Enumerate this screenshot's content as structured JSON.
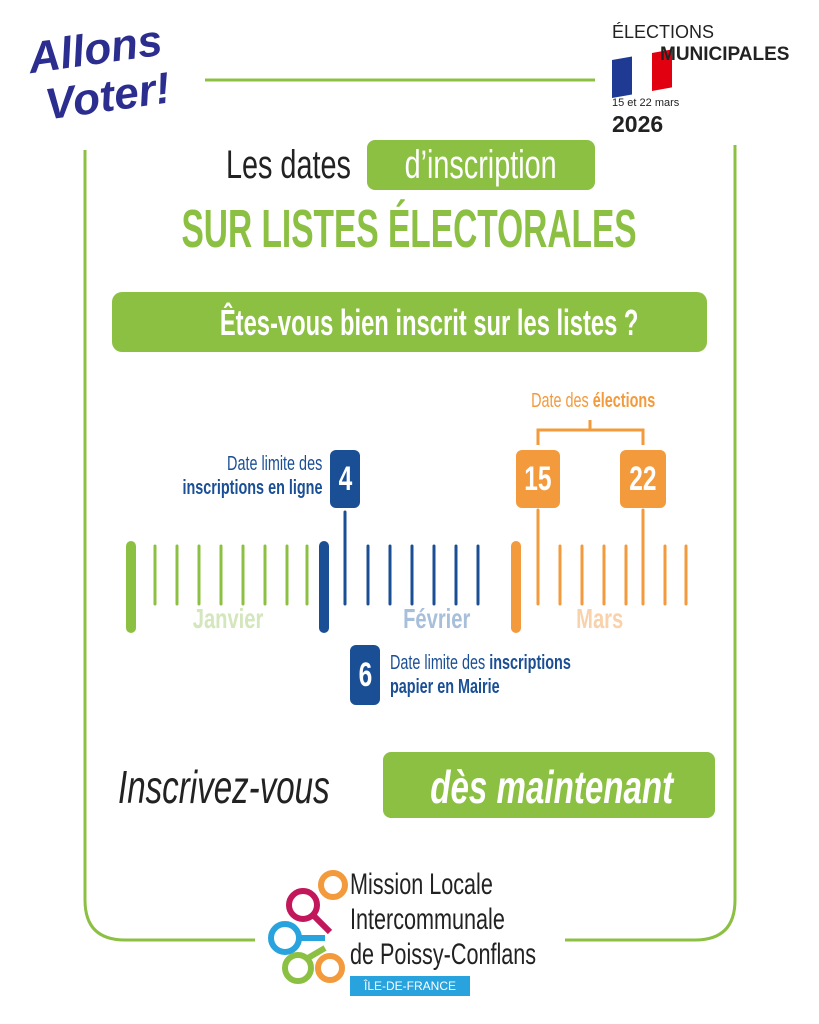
{
  "logo": {
    "line1": "Allons",
    "line2": "Voter!"
  },
  "badge": {
    "title": "ÉLECTIONS",
    "subtitle": "MUNICIPALES",
    "dates": "15 et 22 mars",
    "year": "2026"
  },
  "header": {
    "lead": "Les dates",
    "highlight": "d’inscription",
    "title": "SUR LISTES ÉLECTORALES",
    "question": "Êtes-vous bien inscrit sur les listes ?"
  },
  "timeline": {
    "elections": {
      "lead": "Date des",
      "bold": "élections",
      "days": [
        "15",
        "22"
      ]
    },
    "online": {
      "line1": "Date limite des",
      "line2": "inscriptions en ligne",
      "day": "4"
    },
    "months": [
      "Janvier",
      "Février",
      "Mars"
    ],
    "paper": {
      "day": "6",
      "line1_lead": "Date limite des",
      "line1_bold": "inscriptions",
      "line2": "papier en Mairie"
    }
  },
  "call": {
    "lead": "Inscrivez-vous",
    "highlight": "dès maintenant"
  },
  "footer": {
    "line1": "Mission Locale",
    "line2": "Intercommunale",
    "line3": "de Poissy-Conflans",
    "region": "ÎLE-DE-FRANCE"
  }
}
